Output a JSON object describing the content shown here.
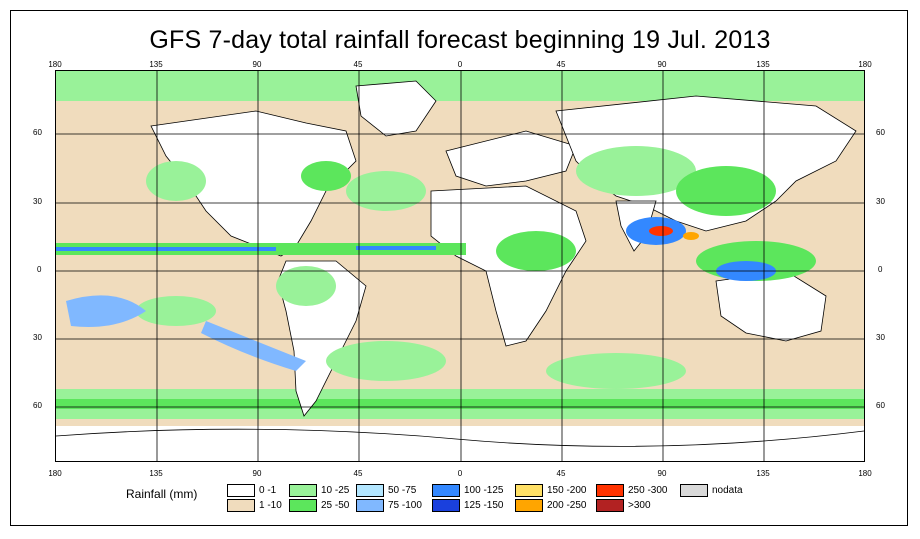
{
  "title": "GFS 7-day total rainfall forecast beginning 19 Jul. 2013",
  "top_ticks": [
    "180",
    "135",
    "90",
    "45",
    "0",
    "45",
    "90",
    "135",
    "180"
  ],
  "bottom_ticks": [
    "180",
    "135",
    "90",
    "45",
    "0",
    "45",
    "90",
    "135",
    "180"
  ],
  "left_ticks": [
    "60",
    "30",
    "0",
    "30",
    "60"
  ],
  "right_ticks": [
    "60",
    "30",
    "0",
    "30",
    "60"
  ],
  "legend": {
    "title": "Rainfall (mm)",
    "items": [
      {
        "label": "0 -1",
        "color": "#ffffff"
      },
      {
        "label": "1 -10",
        "color": "#f0dcbd"
      },
      {
        "label": "10 -25",
        "color": "#99f299"
      },
      {
        "label": "25 -50",
        "color": "#5ce65c"
      },
      {
        "label": "50 -75",
        "color": "#b3e6ff"
      },
      {
        "label": "75 -100",
        "color": "#80b8ff"
      },
      {
        "label": "100 -125",
        "color": "#3388ff"
      },
      {
        "label": "125 -150",
        "color": "#1a40dd"
      },
      {
        "label": "150 -200",
        "color": "#ffe066"
      },
      {
        "label": "200 -250",
        "color": "#ffa500"
      },
      {
        "label": "250 -300",
        "color": "#ff3300"
      },
      {
        "label": ">300",
        "color": "#b22222"
      },
      {
        "label": "nodata",
        "color": "#d9d9d9"
      }
    ]
  },
  "colors": {
    "land_dry": "#ffffff",
    "ocean_light": "#f0dcbd",
    "rain_light": "#99f299",
    "rain_moderate": "#5ce65c",
    "rain_heavy": "#3388ff",
    "rain_extreme": "#ff3300"
  }
}
